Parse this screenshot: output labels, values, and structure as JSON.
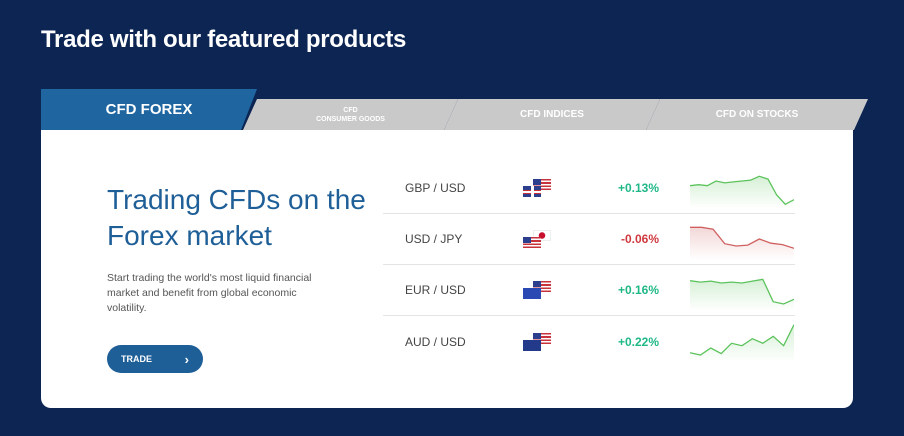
{
  "title": "Trade with our featured products",
  "tabs": [
    {
      "label": "CFD FOREX"
    },
    {
      "label_top": "CFD",
      "label_bottom": "CONSUMER GOODS"
    },
    {
      "label": "CFD INDICES"
    },
    {
      "label": "CFD ON STOCKS"
    }
  ],
  "hero": {
    "heading": "Trading CFDs on the Forex market",
    "description": "Start trading the world's most liquid financial market and benefit from global economic volatility.",
    "button": "TRADE",
    "button_icon": "›"
  },
  "colors": {
    "up": "#1fb886",
    "down": "#d0393f",
    "up_line": "#5cc35c",
    "down_line": "#d06060"
  },
  "rows": [
    {
      "pair": "GBP / USD",
      "flags": [
        "gb",
        "us"
      ],
      "change": "+0.13%",
      "dir": "up",
      "spark": [
        5,
        5.2,
        5,
        6,
        5.6,
        5.8,
        6,
        6.2,
        7,
        6.4,
        3,
        1,
        2
      ]
    },
    {
      "pair": "USD / JPY",
      "flags": [
        "us",
        "jp"
      ],
      "change": "-0.06%",
      "dir": "down",
      "spark": [
        7,
        7,
        6.6,
        3.5,
        3,
        3.2,
        4.5,
        3.6,
        3.3,
        2.5
      ]
    },
    {
      "pair": "EUR / USD",
      "flags": [
        "eu",
        "us"
      ],
      "change": "+0.16%",
      "dir": "up",
      "spark": [
        6.5,
        6.2,
        6.4,
        6,
        6.2,
        6,
        6.4,
        6.8,
        2,
        1.5,
        2.5
      ]
    },
    {
      "pair": "AUD / USD",
      "flags": [
        "au",
        "us"
      ],
      "change": "+0.22%",
      "dir": "up",
      "spark": [
        2,
        1.5,
        3,
        1.8,
        4,
        3.5,
        5,
        4,
        5.5,
        3.5,
        8
      ]
    }
  ]
}
